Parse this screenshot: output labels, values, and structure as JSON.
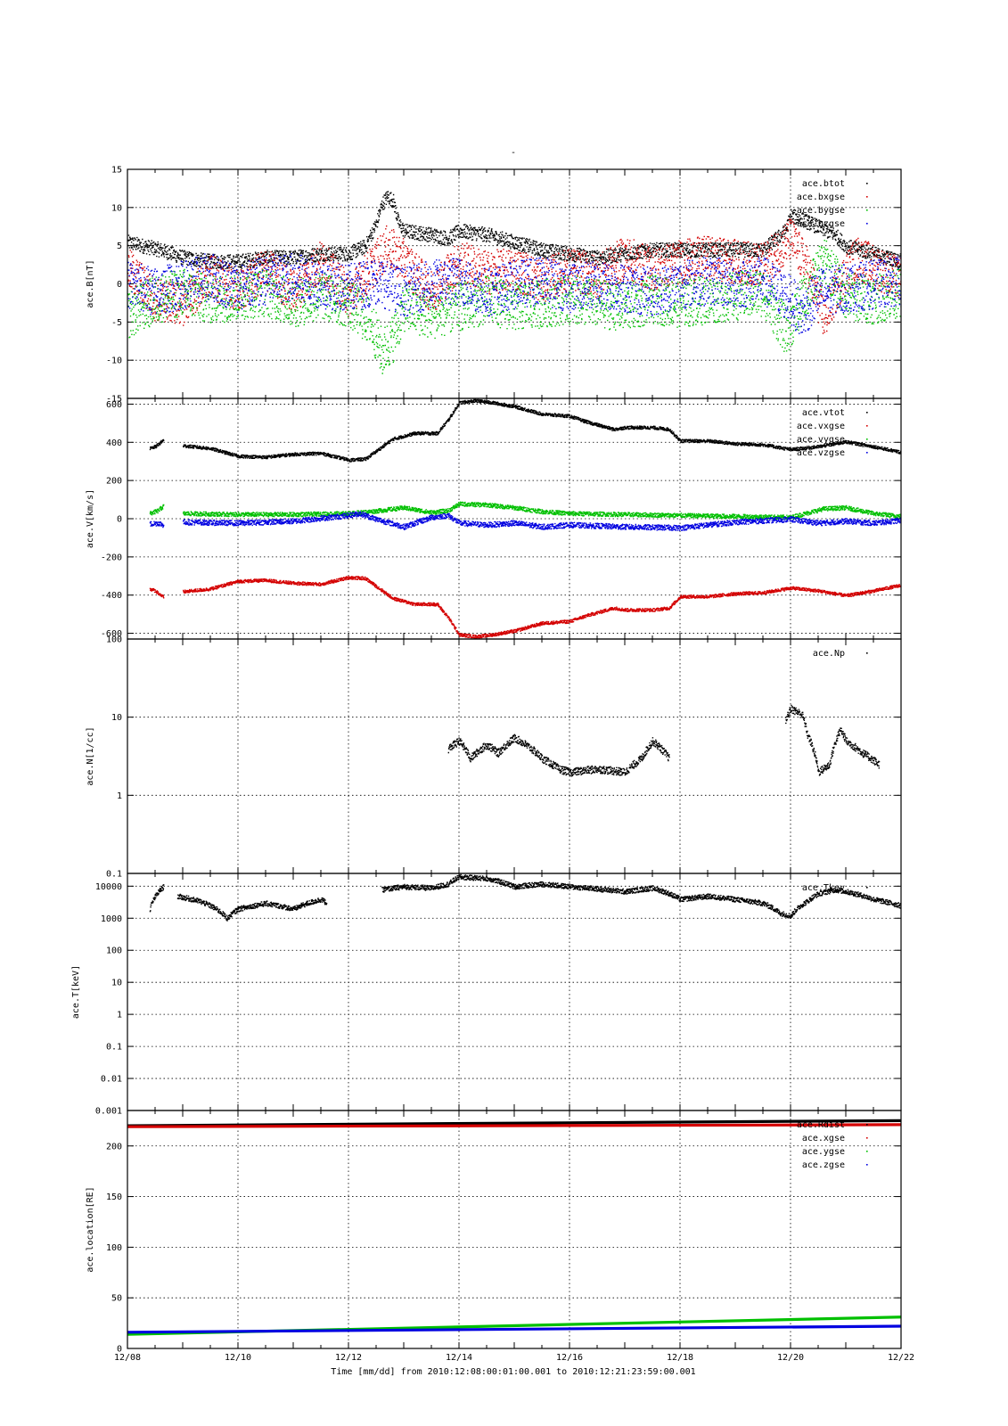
{
  "title": "-",
  "time_caption": "Time [mm/dd]  from 2010:12:08:00:01:00.001  to  2010:12:21:23:59:00.001",
  "x_axis": {
    "unit": "days since 12/08 00:00",
    "range": [
      0,
      14
    ],
    "ticks": [
      {
        "v": 0,
        "label": "12/08"
      },
      {
        "v": 2,
        "label": "12/10"
      },
      {
        "v": 4,
        "label": "12/12"
      },
      {
        "v": 6,
        "label": "12/14"
      },
      {
        "v": 8,
        "label": "12/16"
      },
      {
        "v": 10,
        "label": "12/18"
      },
      {
        "v": 12,
        "label": "12/20"
      },
      {
        "v": 14,
        "label": "12/22"
      }
    ]
  },
  "chart_data": [
    {
      "type": "scatter",
      "ylabel": "ace.B[nT]",
      "yscale": "linear",
      "ylim": [
        -15,
        15
      ],
      "yticks": [
        {
          "v": 15,
          "label": "15"
        },
        {
          "v": 10,
          "label": "10"
        },
        {
          "v": 5,
          "label": "5"
        },
        {
          "v": 0,
          "label": "0"
        },
        {
          "v": -5,
          "label": "-5"
        },
        {
          "v": -10,
          "label": "-10"
        },
        {
          "v": -15,
          "label": "-15"
        }
      ],
      "legend_position": "top-right",
      "series": [
        {
          "name": "ace.btot",
          "color": "#000000",
          "noise": 0.6,
          "x": [
            0.0,
            0.3,
            0.6,
            1.0,
            1.5,
            2.0,
            2.5,
            3.0,
            3.5,
            4.0,
            4.3,
            4.5,
            4.6,
            4.7,
            4.8,
            4.9,
            5.0,
            5.5,
            5.8,
            6.0,
            6.5,
            7.0,
            7.5,
            8.0,
            8.5,
            9.0,
            9.5,
            10.0,
            10.5,
            11.0,
            11.5,
            11.9,
            12.0,
            12.2,
            12.5,
            12.8,
            13.0,
            13.5,
            14.0
          ],
          "y": [
            5.5,
            5.0,
            4.5,
            3.5,
            3.0,
            3.0,
            3.5,
            3.5,
            4.0,
            4.0,
            5.0,
            8.0,
            10.5,
            11.5,
            11.0,
            8.0,
            7.0,
            6.5,
            6.0,
            7.0,
            6.5,
            5.5,
            4.5,
            4.0,
            3.5,
            4.0,
            4.5,
            4.5,
            4.5,
            4.5,
            4.5,
            7.0,
            9.0,
            8.5,
            7.5,
            6.5,
            5.0,
            4.0,
            3.0
          ]
        },
        {
          "name": "ace.bxgse",
          "color": "#d40000",
          "noise": 1.8,
          "x": [
            0.0,
            0.5,
            1.0,
            1.5,
            2.0,
            2.5,
            3.0,
            3.5,
            4.0,
            4.5,
            4.7,
            5.0,
            5.5,
            6.0,
            6.5,
            7.0,
            7.5,
            8.0,
            8.5,
            9.0,
            9.5,
            10.0,
            10.5,
            11.0,
            11.5,
            12.0,
            12.3,
            12.6,
            12.9,
            13.2,
            13.6,
            14.0
          ],
          "y": [
            2.0,
            -2.0,
            -2.5,
            1.0,
            -1.0,
            2.0,
            -1.0,
            3.0,
            -1.5,
            3.0,
            5.0,
            3.0,
            -1.0,
            3.0,
            1.5,
            2.0,
            0.5,
            2.0,
            1.0,
            3.5,
            2.0,
            3.0,
            3.5,
            3.0,
            2.5,
            6.0,
            2.0,
            -4.5,
            0.5,
            3.5,
            2.0,
            0.5
          ]
        },
        {
          "name": "ace.bygse",
          "color": "#00c000",
          "noise": 2.0,
          "x": [
            0.0,
            0.5,
            1.0,
            1.5,
            2.0,
            2.5,
            3.0,
            3.5,
            4.0,
            4.4,
            4.6,
            4.8,
            5.0,
            5.5,
            6.0,
            6.5,
            7.0,
            7.5,
            8.0,
            8.5,
            9.0,
            9.5,
            10.0,
            10.5,
            11.0,
            11.5,
            11.9,
            12.0,
            12.3,
            12.6,
            13.0,
            13.5,
            14.0
          ],
          "y": [
            -4.0,
            -2.0,
            -1.0,
            -2.0,
            -1.5,
            -1.0,
            -2.5,
            -1.5,
            -2.5,
            -5.0,
            -9.0,
            -7.0,
            -3.0,
            -4.0,
            -3.0,
            -2.0,
            -3.0,
            -2.5,
            -2.0,
            -2.5,
            -3.0,
            -2.0,
            -2.5,
            -2.0,
            -1.5,
            -1.0,
            -6.0,
            -5.0,
            -1.0,
            3.0,
            -1.5,
            -2.0,
            -1.0
          ]
        },
        {
          "name": "ace.bzgse",
          "color": "#0000e0",
          "noise": 2.0,
          "x": [
            0.0,
            0.5,
            1.0,
            1.5,
            2.0,
            2.5,
            3.0,
            3.5,
            4.0,
            4.5,
            5.0,
            5.5,
            6.0,
            6.5,
            7.0,
            7.5,
            8.0,
            8.5,
            9.0,
            9.5,
            10.0,
            10.5,
            11.0,
            11.5,
            12.0,
            12.2,
            12.5,
            13.0,
            13.5,
            14.0
          ],
          "y": [
            0.0,
            -1.0,
            0.0,
            1.0,
            -0.5,
            0.5,
            1.0,
            0.0,
            -0.5,
            0.5,
            -1.0,
            0.0,
            0.5,
            -1.0,
            0.0,
            0.5,
            -0.5,
            0.0,
            -0.5,
            -1.0,
            0.0,
            0.5,
            0.0,
            0.5,
            -2.0,
            -4.0,
            -1.0,
            -0.5,
            0.0,
            0.5
          ]
        }
      ]
    },
    {
      "type": "scatter",
      "ylabel": "ace.V[km/s]",
      "yscale": "linear",
      "ylim": [
        -630,
        630
      ],
      "yticks": [
        {
          "v": 600,
          "label": "600"
        },
        {
          "v": 400,
          "label": "400"
        },
        {
          "v": 200,
          "label": "200"
        },
        {
          "v": 0,
          "label": "0"
        },
        {
          "v": -200,
          "label": "-200"
        },
        {
          "v": -400,
          "label": "-400"
        },
        {
          "v": -600,
          "label": "-600"
        }
      ],
      "legend_position": "top-right",
      "series": [
        {
          "name": "ace.vtot",
          "color": "#000000",
          "noise": 6,
          "x": [
            0.4,
            0.5,
            0.65,
            0.7,
            1.0,
            1.5,
            2.0,
            2.5,
            3.0,
            3.5,
            4.0,
            4.3,
            4.8,
            5.2,
            5.6,
            5.8,
            6.0,
            6.3,
            6.6,
            7.0,
            7.5,
            8.0,
            8.3,
            8.8,
            9.0,
            9.5,
            9.8,
            10.0,
            10.5,
            11.0,
            11.5,
            12.0,
            12.5,
            13.0,
            13.5,
            14.0
          ],
          "y": [
            370,
            380,
            415,
            null,
            385,
            370,
            330,
            325,
            340,
            345,
            310,
            315,
            420,
            450,
            450,
            520,
            610,
            620,
            610,
            590,
            550,
            540,
            510,
            470,
            480,
            480,
            470,
            410,
            410,
            395,
            390,
            365,
            380,
            405,
            380,
            350
          ]
        },
        {
          "name": "ace.vxgse",
          "color": "#d40000",
          "noise": 6,
          "x": [
            0.4,
            0.5,
            0.65,
            0.7,
            1.0,
            1.5,
            2.0,
            2.5,
            3.0,
            3.5,
            4.0,
            4.3,
            4.8,
            5.2,
            5.6,
            5.8,
            6.0,
            6.3,
            6.6,
            7.0,
            7.5,
            8.0,
            8.3,
            8.8,
            9.0,
            9.5,
            9.8,
            10.0,
            10.5,
            11.0,
            11.5,
            12.0,
            12.5,
            13.0,
            13.5,
            14.0
          ],
          "y": [
            -365,
            -375,
            -410,
            null,
            -380,
            -365,
            -325,
            -320,
            -335,
            -340,
            -305,
            -310,
            -415,
            -445,
            -445,
            -515,
            -605,
            -615,
            -605,
            -585,
            -545,
            -535,
            -505,
            -465,
            -475,
            -475,
            -465,
            -405,
            -405,
            -390,
            -385,
            -360,
            -375,
            -400,
            -375,
            -345
          ]
        },
        {
          "name": "ace.vygse",
          "color": "#00c000",
          "noise": 8,
          "x": [
            0.4,
            0.55,
            0.65,
            0.7,
            1.0,
            2.0,
            3.0,
            4.0,
            4.4,
            5.0,
            5.5,
            5.8,
            6.0,
            6.5,
            7.0,
            7.5,
            8.0,
            9.0,
            10.0,
            11.0,
            12.0,
            12.6,
            13.0,
            13.5,
            14.0
          ],
          "y": [
            30,
            45,
            70,
            null,
            30,
            25,
            25,
            30,
            40,
            60,
            35,
            45,
            80,
            75,
            60,
            40,
            30,
            25,
            20,
            15,
            10,
            55,
            60,
            30,
            15
          ]
        },
        {
          "name": "ace.vzgse",
          "color": "#0000e0",
          "noise": 10,
          "x": [
            0.4,
            0.55,
            0.65,
            0.7,
            1.0,
            2.0,
            3.0,
            4.0,
            4.2,
            4.5,
            5.0,
            5.5,
            5.8,
            6.0,
            6.5,
            7.0,
            7.5,
            8.0,
            9.0,
            10.0,
            11.0,
            12.0,
            12.5,
            13.0,
            13.5,
            14.0
          ],
          "y": [
            -25,
            -20,
            -30,
            null,
            -15,
            -20,
            -10,
            20,
            30,
            0,
            -40,
            10,
            20,
            -20,
            -30,
            -20,
            -40,
            -30,
            -40,
            -45,
            -15,
            0,
            -20,
            -10,
            -20,
            -5
          ]
        }
      ]
    },
    {
      "type": "scatter",
      "ylabel": "ace.N[1/cc]",
      "yscale": "log",
      "ylim": [
        0.1,
        100
      ],
      "yticks": [
        {
          "v": 100,
          "label": "100"
        },
        {
          "v": 10,
          "label": "10"
        },
        {
          "v": 1,
          "label": "1"
        },
        {
          "v": 0.1,
          "label": "0.1"
        }
      ],
      "legend_position": "top-right",
      "series": [
        {
          "name": "ace.Np",
          "color": "#000000",
          "noise": 0.05,
          "x": [
            5.8,
            6.0,
            6.2,
            6.5,
            6.7,
            7.0,
            7.5,
            7.8,
            8.0,
            8.5,
            9.0,
            9.3,
            9.5,
            9.8,
            null,
            11.9,
            12.0,
            12.2,
            12.3,
            12.5,
            12.7,
            12.9,
            13.0,
            13.3,
            13.6
          ],
          "y": [
            4.0,
            5.0,
            3.0,
            4.5,
            3.5,
            5.5,
            3.0,
            2.2,
            2.0,
            2.2,
            2.0,
            3.0,
            5.0,
            3.0,
            null,
            9.0,
            13.0,
            11.0,
            6.0,
            2.0,
            2.5,
            7.0,
            5.0,
            3.5,
            2.5
          ]
        }
      ]
    },
    {
      "type": "scatter",
      "ylabel": "ace.T[keV]",
      "yscale": "log",
      "ylim": [
        0.001,
        25000
      ],
      "yticks": [
        {
          "v": 10000,
          "label": "10000"
        },
        {
          "v": 1000,
          "label": "1000"
        },
        {
          "v": 100,
          "label": "100"
        },
        {
          "v": 10,
          "label": "10"
        },
        {
          "v": 1,
          "label": "1"
        },
        {
          "v": 0.1,
          "label": "0.1"
        },
        {
          "v": 0.01,
          "label": "0.01"
        },
        {
          "v": 0.001,
          "label": "0.001"
        }
      ],
      "legend_position": "top-right",
      "series": [
        {
          "name": "ace.Tkev",
          "color": "#000000",
          "noise": 0.08,
          "x": [
            0.4,
            0.5,
            0.65,
            null,
            0.9,
            1.3,
            1.7,
            1.8,
            2.0,
            2.5,
            3.0,
            3.5,
            3.6,
            null,
            4.6,
            5.0,
            5.5,
            5.8,
            6.0,
            6.5,
            7.0,
            7.5,
            8.0,
            9.0,
            9.5,
            10.0,
            10.5,
            11.0,
            11.5,
            11.8,
            12.0,
            12.3,
            12.5,
            12.8,
            13.0,
            13.5,
            14.0
          ],
          "y": [
            2000,
            5000,
            10000,
            null,
            5000,
            3500,
            1500,
            1000,
            2000,
            3000,
            2000,
            4000,
            3000,
            null,
            8000,
            10000,
            9000,
            12000,
            20000,
            18000,
            10000,
            12000,
            10000,
            7000,
            9000,
            4000,
            5000,
            4000,
            3000,
            1500,
            1200,
            3500,
            6000,
            8000,
            7000,
            4000,
            2500
          ]
        }
      ]
    },
    {
      "type": "scatter",
      "ylabel": "ace.location[RE]",
      "yscale": "linear",
      "ylim": [
        0,
        235
      ],
      "yticks": [
        {
          "v": 200,
          "label": "200"
        },
        {
          "v": 150,
          "label": "150"
        },
        {
          "v": 100,
          "label": "100"
        },
        {
          "v": 50,
          "label": "50"
        },
        {
          "v": 0,
          "label": "0"
        }
      ],
      "legend_position": "top-right",
      "series": [
        {
          "name": "ace.Rdist",
          "color": "#000000",
          "noise": 0,
          "x": [
            0,
            14
          ],
          "y": [
            220,
            225
          ]
        },
        {
          "name": "ace.xgse",
          "color": "#d40000",
          "noise": 0,
          "x": [
            0,
            14
          ],
          "y": [
            219,
            221
          ]
        },
        {
          "name": "ace.ygse",
          "color": "#00c000",
          "noise": 0,
          "x": [
            0,
            14
          ],
          "y": [
            14,
            31
          ]
        },
        {
          "name": "ace.zgse",
          "color": "#0000e0",
          "noise": 0,
          "x": [
            0,
            14
          ],
          "y": [
            16,
            22
          ]
        }
      ]
    }
  ]
}
